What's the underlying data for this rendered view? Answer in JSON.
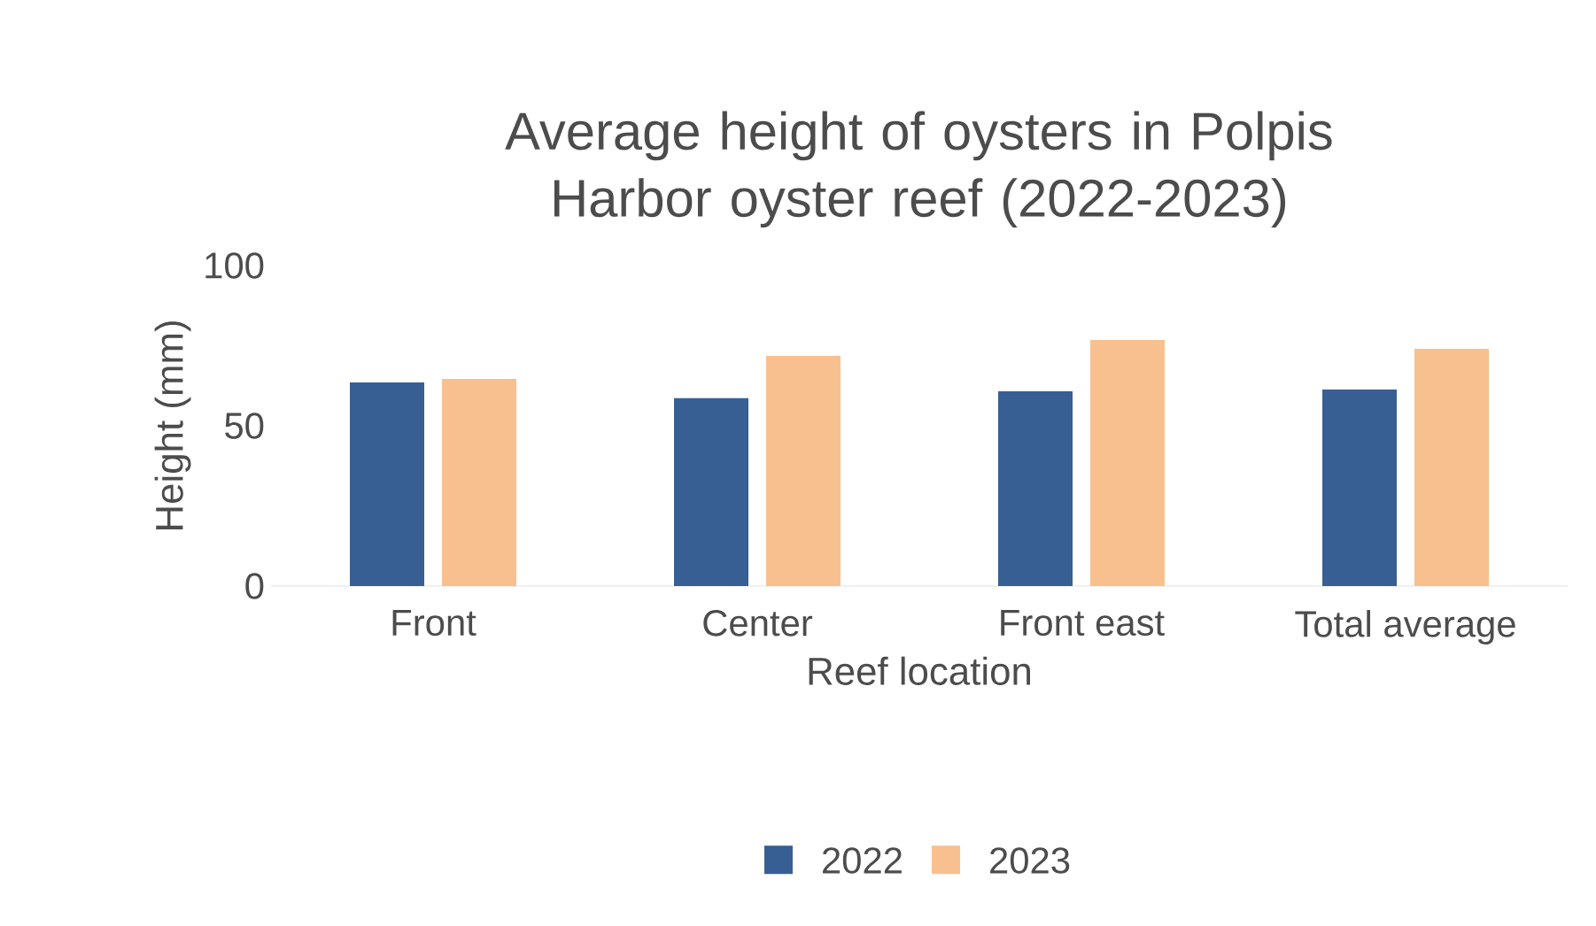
{
  "chart_data": {
    "type": "bar",
    "title": "Average height of oysters in Polpis Harbor oyster reef (2022-2023)",
    "xlabel": "Reef location",
    "ylabel": "Height (mm)",
    "categories": [
      "Front",
      "Center",
      "Front east",
      "Total average"
    ],
    "series": [
      {
        "name": "2022",
        "color": "#375f93",
        "values": [
          63.5,
          58.6,
          60.8,
          61.3
        ]
      },
      {
        "name": "2023",
        "color": "#f8c08f",
        "values": [
          64.6,
          71.8,
          76.8,
          74.0
        ]
      }
    ],
    "ylim": [
      0,
      100
    ],
    "yticks": [
      0,
      50,
      100
    ],
    "legend": "bottom"
  }
}
